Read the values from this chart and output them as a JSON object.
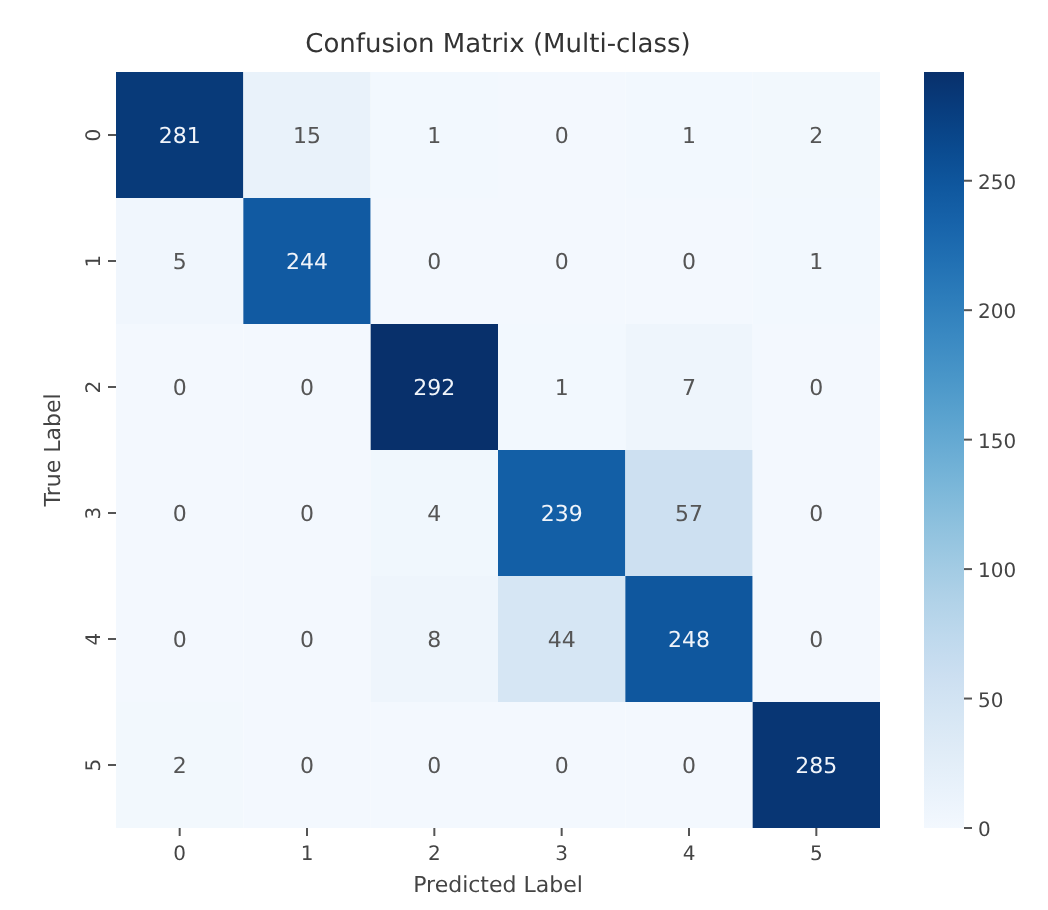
{
  "chart_data": {
    "type": "heatmap",
    "title": "Confusion Matrix (Multi-class)",
    "xlabel": "Predicted Label",
    "ylabel": "True Label",
    "categories": [
      "0",
      "1",
      "2",
      "3",
      "4",
      "5"
    ],
    "y_categories": [
      "0",
      "1",
      "2",
      "3",
      "4",
      "5"
    ],
    "cells": [
      [
        281,
        15,
        1,
        0,
        1,
        2
      ],
      [
        5,
        244,
        0,
        0,
        0,
        1
      ],
      [
        0,
        0,
        292,
        1,
        7,
        0
      ],
      [
        0,
        0,
        4,
        239,
        57,
        0
      ],
      [
        0,
        0,
        8,
        44,
        248,
        0
      ],
      [
        2,
        0,
        0,
        0,
        0,
        285
      ]
    ],
    "data_labels": true,
    "clim": [
      0,
      292
    ],
    "cticks": [
      0,
      50,
      100,
      150,
      200,
      250
    ]
  }
}
